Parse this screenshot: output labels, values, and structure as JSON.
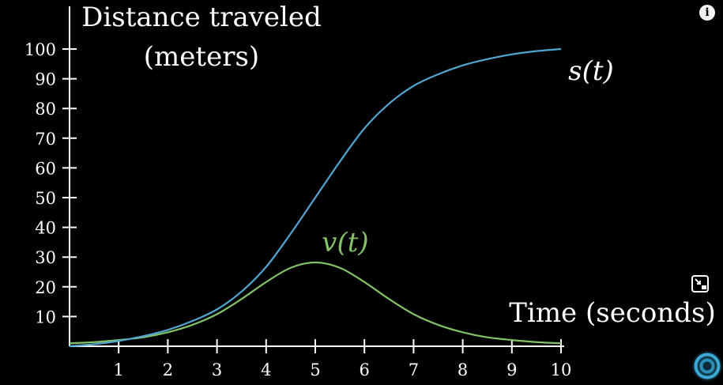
{
  "chart_data": {
    "type": "line",
    "ylabel": [
      "Distance traveled",
      "(meters)"
    ],
    "xlabel": "Time (seconds)",
    "xlim": [
      0,
      10
    ],
    "ylim": [
      0,
      100
    ],
    "x_ticks": [
      1,
      2,
      3,
      4,
      5,
      6,
      7,
      8,
      9,
      10
    ],
    "y_ticks": [
      10,
      20,
      30,
      40,
      50,
      60,
      70,
      80,
      90,
      100
    ],
    "grid": false,
    "series": [
      {
        "name": "s(t)",
        "color": "#53a5d1",
        "x": [
          0,
          0.5,
          1,
          1.5,
          2,
          2.5,
          3,
          3.5,
          4,
          4.5,
          5,
          5.5,
          6,
          6.5,
          7,
          7.5,
          8,
          8.5,
          9,
          9.5,
          10
        ],
        "values": [
          0,
          0.7,
          1.8,
          3.4,
          5.5,
          8.5,
          12.4,
          18.4,
          26.7,
          37.9,
          50,
          62.1,
          73.3,
          81.6,
          87.6,
          91.5,
          94.5,
          96.6,
          98.2,
          99.3,
          100
        ]
      },
      {
        "name": "v(t)",
        "color": "#83c167",
        "x": [
          0,
          0.5,
          1,
          1.5,
          2,
          2.5,
          3,
          3.5,
          4,
          4.5,
          5,
          5.5,
          6,
          6.5,
          7,
          7.5,
          8,
          8.5,
          9,
          9.5,
          10
        ],
        "values": [
          1.0,
          1.4,
          2.1,
          3.0,
          4.7,
          7.2,
          10.8,
          15.9,
          21.6,
          26.4,
          28.2,
          26.4,
          21.6,
          15.9,
          10.8,
          7.2,
          4.7,
          3.0,
          2.1,
          1.4,
          1.0
        ]
      }
    ]
  },
  "overlay": {
    "info_icon": "i",
    "miniplayer_icon": "miniplayer-icon",
    "avatar_icon": "channel-avatar-icon"
  }
}
